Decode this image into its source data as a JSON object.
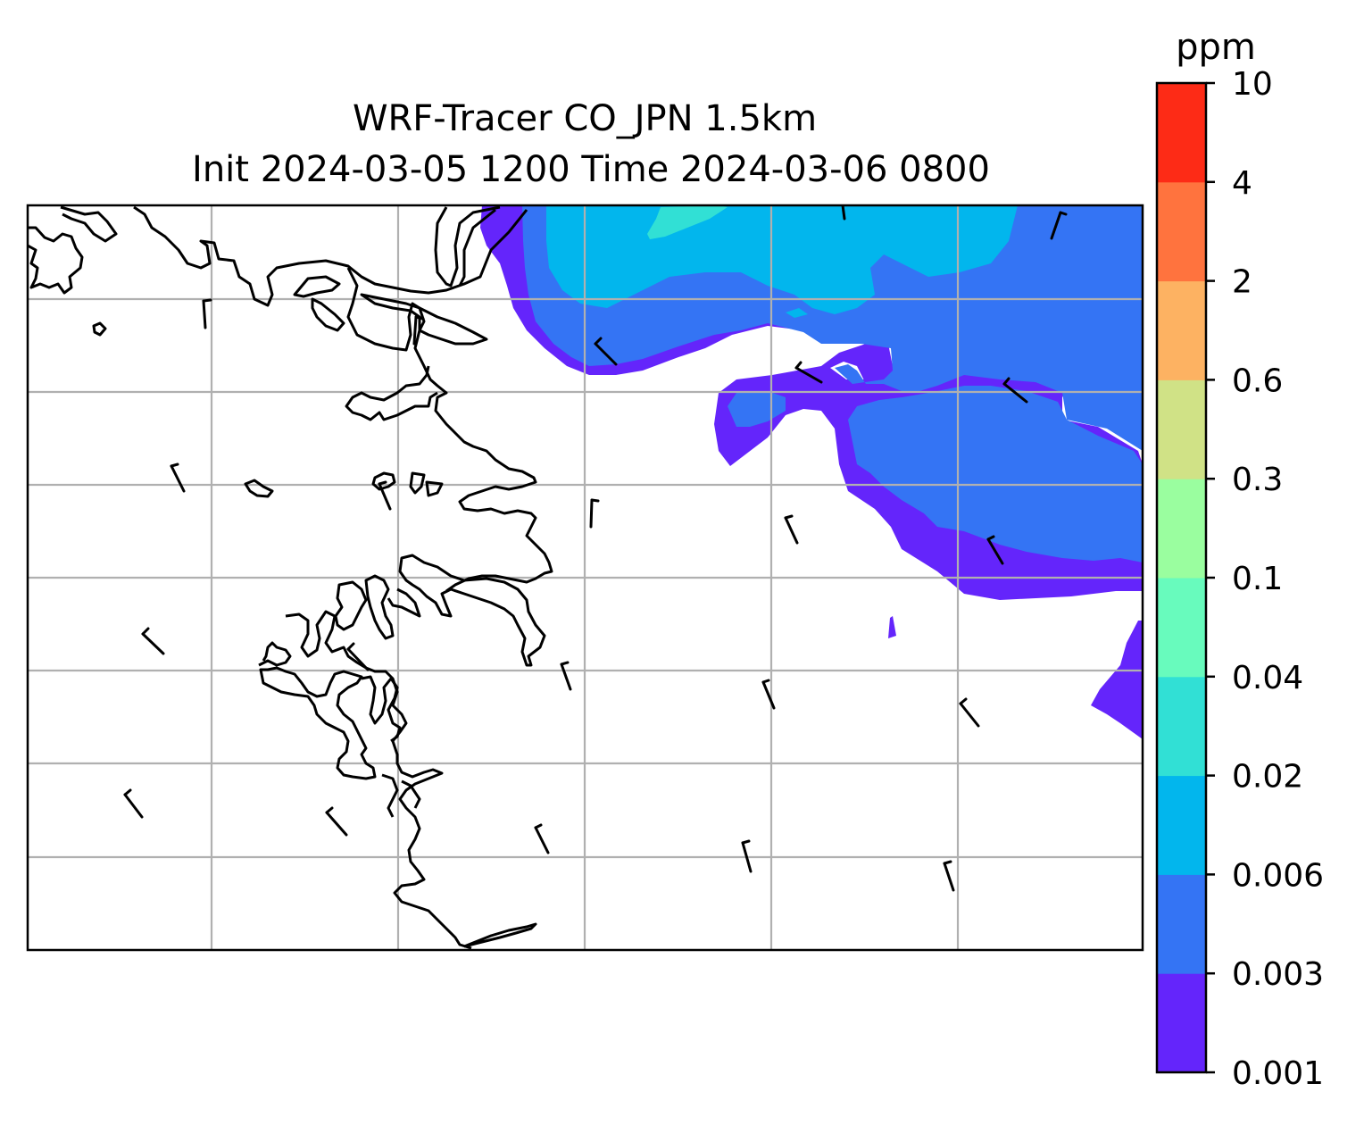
{
  "title": {
    "line1": "WRF-Tracer CO_JPN 1.5km",
    "line2": "Init 2024-03-05 1200 Time 2024-03-06 0800"
  },
  "colorbar": {
    "unit_label": "ppm",
    "levels": [
      "0.001",
      "0.003",
      "0.006",
      "0.02",
      "0.04",
      "0.1",
      "0.3",
      "0.6",
      "2",
      "4",
      "10"
    ],
    "colors": [
      "#6425fb",
      "#3474f4",
      "#02b6ed",
      "#31e0d5",
      "#68fbbd",
      "#9afe9f",
      "#d0e286",
      "#fdb262",
      "#ff733e",
      "#fd2b16"
    ]
  },
  "map": {
    "frame_color": "#000000",
    "grid_color": "#b0b0b0",
    "coastline_color": "#000000",
    "wind_barb_color": "#000000"
  }
}
